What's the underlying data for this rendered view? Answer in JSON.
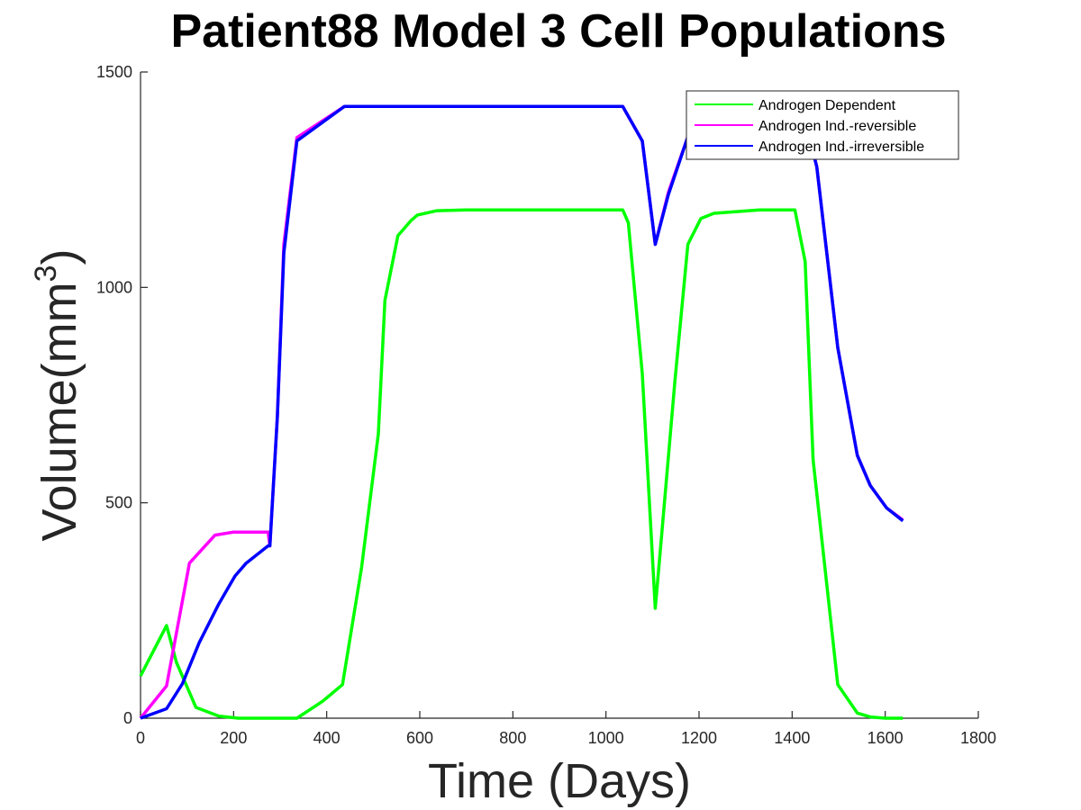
{
  "chart_data": {
    "type": "line",
    "title": "Patient88 Model 3 Cell Populations",
    "xlabel": "Time (Days)",
    "ylabel": "Volume(mm",
    "ylabel_superscript": "3",
    "ylabel_close": ")",
    "xlim": [
      0,
      1800
    ],
    "ylim": [
      0,
      1500
    ],
    "xticks": [
      "0",
      "200",
      "400",
      "600",
      "800",
      "1000",
      "1200",
      "1400",
      "1600",
      "1800"
    ],
    "yticks": [
      "0",
      "500",
      "1000",
      "1500"
    ],
    "grid": false,
    "legend_position": "top-right",
    "series": [
      {
        "name": "Androgen Dependent",
        "color": "#00ff00",
        "points": [
          [
            0,
            98
          ],
          [
            56,
            215
          ],
          [
            77,
            130
          ],
          [
            105,
            60
          ],
          [
            119,
            25
          ],
          [
            168,
            5
          ],
          [
            210,
            0
          ],
          [
            336,
            0
          ],
          [
            392,
            40
          ],
          [
            434,
            78
          ],
          [
            475,
            350
          ],
          [
            511,
            660
          ],
          [
            525,
            970
          ],
          [
            553,
            1120
          ],
          [
            581,
            1155
          ],
          [
            595,
            1168
          ],
          [
            637,
            1178
          ],
          [
            700,
            1180
          ],
          [
            900,
            1180
          ],
          [
            1036,
            1180
          ],
          [
            1048,
            1150
          ],
          [
            1078,
            800
          ],
          [
            1106,
            255
          ],
          [
            1120,
            430
          ],
          [
            1148,
            780
          ],
          [
            1176,
            1100
          ],
          [
            1204,
            1160
          ],
          [
            1232,
            1172
          ],
          [
            1330,
            1180
          ],
          [
            1406,
            1180
          ],
          [
            1428,
            1060
          ],
          [
            1445,
            600
          ],
          [
            1498,
            78
          ],
          [
            1540,
            12
          ],
          [
            1568,
            3
          ],
          [
            1600,
            0
          ],
          [
            1638,
            0
          ]
        ]
      },
      {
        "name": "Androgen Ind.-reversible",
        "color": "#ff00ff",
        "points": [
          [
            0,
            0
          ],
          [
            56,
            75
          ],
          [
            105,
            360
          ],
          [
            160,
            425
          ],
          [
            200,
            432
          ],
          [
            274,
            432
          ],
          [
            278,
            400
          ],
          [
            294,
            700
          ],
          [
            308,
            1100
          ],
          [
            336,
            1348
          ],
          [
            438,
            1420
          ],
          [
            600,
            1420
          ],
          [
            800,
            1420
          ],
          [
            1036,
            1420
          ],
          [
            1078,
            1340
          ],
          [
            1106,
            1100
          ],
          [
            1134,
            1220
          ],
          [
            1176,
            1350
          ],
          [
            1250,
            1420
          ],
          [
            1420,
            1420
          ],
          [
            1453,
            1280
          ],
          [
            1498,
            860
          ],
          [
            1540,
            610
          ],
          [
            1568,
            540
          ],
          [
            1603,
            488
          ],
          [
            1638,
            460
          ]
        ]
      },
      {
        "name": "Androgen Ind.-irreversible",
        "color": "#0000ff",
        "points": [
          [
            0,
            0
          ],
          [
            56,
            22
          ],
          [
            90,
            80
          ],
          [
            126,
            175
          ],
          [
            168,
            265
          ],
          [
            203,
            330
          ],
          [
            227,
            360
          ],
          [
            274,
            400
          ],
          [
            278,
            400
          ],
          [
            294,
            700
          ],
          [
            308,
            1080
          ],
          [
            336,
            1340
          ],
          [
            438,
            1420
          ],
          [
            600,
            1420
          ],
          [
            800,
            1420
          ],
          [
            1036,
            1420
          ],
          [
            1078,
            1340
          ],
          [
            1106,
            1100
          ],
          [
            1134,
            1215
          ],
          [
            1176,
            1350
          ],
          [
            1250,
            1420
          ],
          [
            1420,
            1420
          ],
          [
            1453,
            1280
          ],
          [
            1498,
            860
          ],
          [
            1540,
            610
          ],
          [
            1568,
            540
          ],
          [
            1603,
            488
          ],
          [
            1638,
            458
          ]
        ]
      }
    ]
  }
}
